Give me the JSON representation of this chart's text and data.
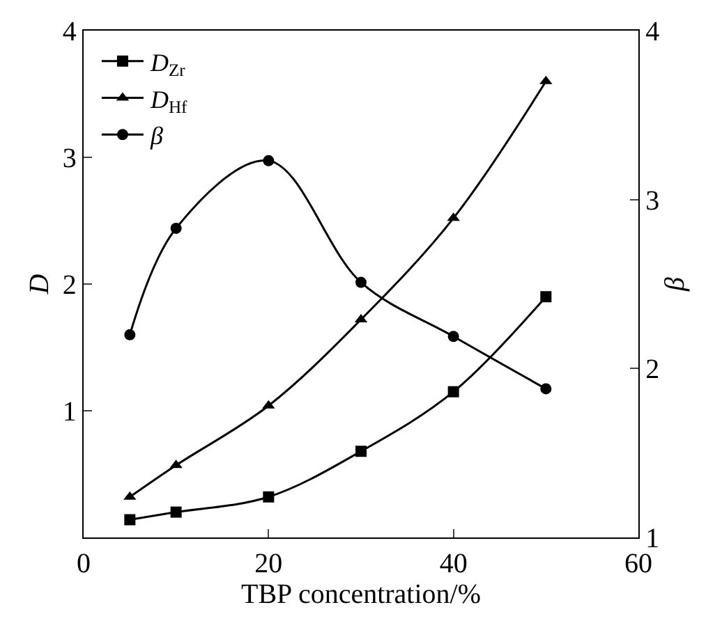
{
  "chart_data": {
    "type": "line",
    "xlabel": "TBP concentration/%",
    "ylabel": "D",
    "y2label": "β",
    "x": [
      5,
      10,
      20,
      30,
      40,
      50
    ],
    "series": [
      {
        "name": "D$_{Zr}$",
        "color": "#000000",
        "marker": "square",
        "values": [
          0.14,
          0.2,
          0.32,
          0.68,
          1.15,
          1.9
        ]
      },
      {
        "name": "D$_{Hf}$",
        "color": "#000000",
        "marker": "triangle",
        "values": [
          0.32,
          0.57,
          1.04,
          1.72,
          2.52,
          3.6
        ]
      },
      {
        "name": "β",
        "color": "#000000",
        "marker": "circle",
        "axis": "y2",
        "values": [
          2.2,
          2.83,
          3.23,
          2.51,
          2.19,
          1.88
        ]
      }
    ],
    "xlim": [
      0,
      60
    ],
    "xticks": [
      0,
      20,
      40,
      60
    ],
    "ylim": [
      0,
      4
    ],
    "yticks": [
      1,
      2,
      3,
      4
    ],
    "y2lim": [
      1,
      4
    ],
    "y2ticks": [
      1,
      2,
      3,
      4
    ],
    "legend": "top left",
    "line_style": "solid"
  }
}
